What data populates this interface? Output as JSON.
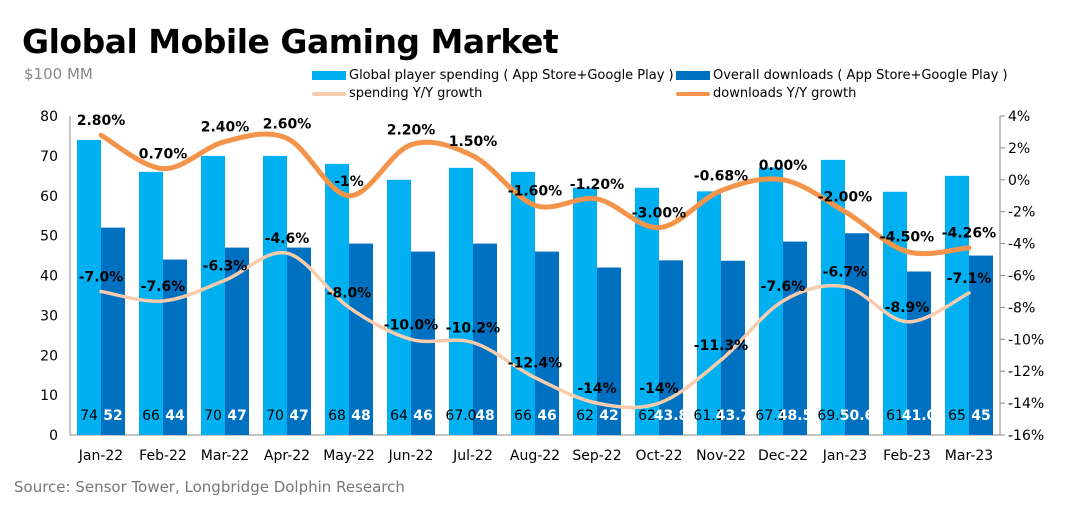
{
  "chart_data": {
    "type": "bar",
    "title": "Global Mobile Gaming Market",
    "left_axis_unit": "$100 MM",
    "source": "Source: Sensor Tower, Longbridge Dolphin Research",
    "categories": [
      "Jan-22",
      "Feb-22",
      "Mar-22",
      "Apr-22",
      "May-22",
      "Jun-22",
      "Jul-22",
      "Aug-22",
      "Sep-22",
      "Oct-22",
      "Nov-22",
      "Dec-22",
      "Jan-23",
      "Feb-23",
      "Mar-23"
    ],
    "ylim_left": [
      0,
      80
    ],
    "yticks_left": [
      "0",
      "10",
      "20",
      "30",
      "40",
      "50",
      "60",
      "70",
      "80"
    ],
    "ylim_right": [
      -16,
      4
    ],
    "yticks_right": [
      "-16%",
      "-14%",
      "-12%",
      "-10%",
      "-8%",
      "-6%",
      "-4%",
      "-2%",
      "0%",
      "2%",
      "4%"
    ],
    "grid": false,
    "legend_position": "top",
    "series": [
      {
        "name": "Global player spending ( App Store+Google Play )",
        "kind": "bar",
        "axis": "left",
        "color": "#00B0F0",
        "values": [
          74,
          66,
          70,
          70,
          68,
          64,
          67.0,
          66,
          62,
          62,
          61.1,
          67.1,
          69.0,
          61,
          65
        ],
        "labels": [
          "74",
          "66",
          "70",
          "70",
          "68",
          "64",
          "67.0",
          "66",
          "62",
          "62",
          "61.1",
          "67.1",
          "69.0",
          "61",
          "65"
        ]
      },
      {
        "name": "Overall downloads ( App Store+Google Play )",
        "kind": "bar",
        "axis": "left",
        "color": "#0070C0",
        "values": [
          52,
          44,
          47,
          47,
          48,
          46,
          48,
          46,
          42,
          43.8,
          43.7,
          48.5,
          50.6,
          41.0,
          45
        ],
        "labels": [
          "52",
          "44",
          "47",
          "47",
          "48",
          "46",
          "48",
          "46",
          "42",
          "43.8",
          "43.7",
          "48.5",
          "50.6",
          "41.0",
          "45"
        ]
      },
      {
        "name": "spending Y/Y growth",
        "kind": "line",
        "axis": "right",
        "color": "#F8CBAD",
        "values": [
          -7.0,
          -7.6,
          -6.3,
          -4.6,
          -8.0,
          -10.0,
          -10.2,
          -12.4,
          -14,
          -14,
          -11.3,
          -7.6,
          -6.7,
          -8.9,
          -7.1
        ],
        "labels": [
          "-7.0%",
          "-7.6%",
          "-6.3%",
          "-4.6%",
          "-8.0%",
          "-10.0%",
          "-10.2%",
          "-12.4%",
          "-14%",
          "-14%",
          "-11.3%",
          "-7.6%",
          "-6.7%",
          "-8.9%",
          "-7.1%"
        ]
      },
      {
        "name": "downloads Y/Y growth",
        "kind": "line",
        "axis": "right",
        "color": "#F4944A",
        "values": [
          2.8,
          0.7,
          2.4,
          2.6,
          -1,
          2.2,
          1.5,
          -1.6,
          -1.2,
          -3.0,
          -0.68,
          0.0,
          -2.0,
          -4.5,
          -4.26
        ],
        "labels": [
          "2.80%",
          "0.70%",
          "2.40%",
          "2.60%",
          "-1%",
          "2.20%",
          "1.50%",
          "-1.60%",
          "-1.20%",
          "-3.00%",
          "-0.68%",
          "0.00%",
          "-2.00%",
          "-4.50%",
          "-4.26%"
        ]
      }
    ]
  }
}
